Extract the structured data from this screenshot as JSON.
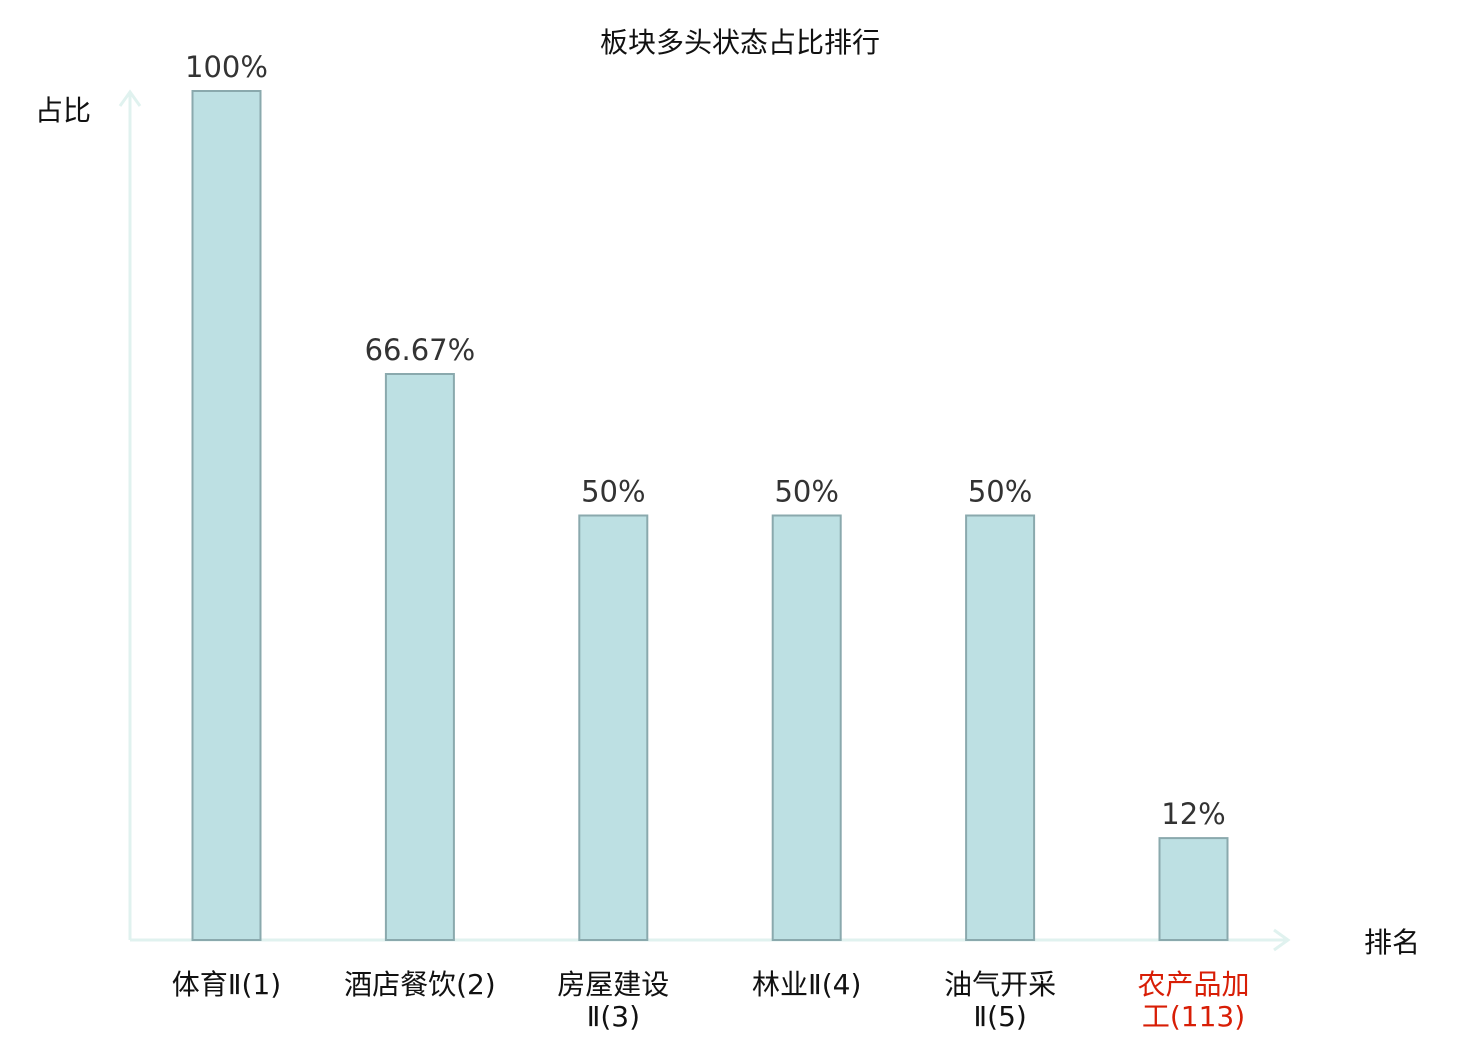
{
  "chart_data": {
    "type": "bar",
    "title": "板块多头状态占比排行",
    "ylabel": "占比",
    "xlabel": "排名",
    "ylim": [
      0,
      100
    ],
    "grid": false,
    "categories": [
      {
        "lines": [
          "体育Ⅱ(1)"
        ],
        "highlight": false
      },
      {
        "lines": [
          "酒店餐饮(2)"
        ],
        "highlight": false
      },
      {
        "lines": [
          "房屋建设",
          "Ⅱ(3)"
        ],
        "highlight": false
      },
      {
        "lines": [
          "林业Ⅱ(4)"
        ],
        "highlight": false
      },
      {
        "lines": [
          "油气开采",
          "Ⅱ(5)"
        ],
        "highlight": false
      },
      {
        "lines": [
          "农产品加",
          "工(113)"
        ],
        "highlight": true
      }
    ],
    "values": [
      100,
      66.67,
      50,
      50,
      50,
      12
    ],
    "value_labels": [
      "100%",
      "66.67%",
      "50%",
      "50%",
      "50%",
      "12%"
    ],
    "colors": {
      "bar_fill": "#bde0e3",
      "bar_stroke": "#8aa9ad",
      "axis": "#e0f2ef",
      "text": "#111111",
      "value_text": "#333333",
      "highlight_text": "#d81e06"
    }
  }
}
